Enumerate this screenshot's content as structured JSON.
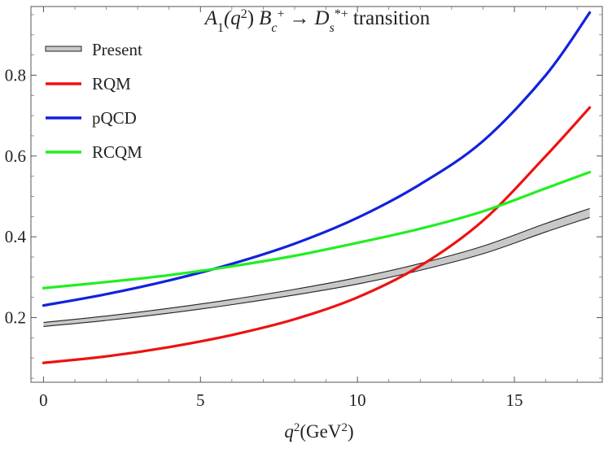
{
  "chart_data": {
    "type": "line",
    "title": {
      "main": "A",
      "sub1": "1",
      "paren_open": "(q",
      "sup": "2",
      "paren_close": ")",
      "b": "B",
      "b_sub": "c",
      "b_sup": "+",
      "arrow": "→",
      "d": "D",
      "d_sub": "s",
      "d_sup": "*+",
      "tail": "transition"
    },
    "xlabel": {
      "var": "q",
      "sup": "2",
      "unit_open": "(GeV",
      "unit_sup": "2",
      "unit_close": ")"
    },
    "ylabel": "",
    "xlim": [
      -0.4,
      17.8
    ],
    "ylim": [
      0.04,
      0.97
    ],
    "xticks": [
      0,
      5,
      10,
      15
    ],
    "xtick_labels": [
      "0",
      "5",
      "10",
      "15"
    ],
    "yticks": [
      0.2,
      0.4,
      0.6,
      0.8
    ],
    "ytick_labels": [
      "0.2",
      "0.4",
      "0.6",
      "0.8"
    ],
    "grid": false,
    "legend_position": "top-left",
    "series": [
      {
        "name": "Present",
        "kind": "band",
        "color": "#222222",
        "fill": "#c8c8c8",
        "x": [
          0,
          2,
          4,
          6,
          8,
          10,
          12,
          14,
          16,
          17.4
        ],
        "lower": [
          0.178,
          0.193,
          0.211,
          0.232,
          0.256,
          0.283,
          0.317,
          0.358,
          0.412,
          0.448
        ],
        "upper": [
          0.188,
          0.204,
          0.223,
          0.245,
          0.27,
          0.299,
          0.334,
          0.377,
          0.433,
          0.47
        ]
      },
      {
        "name": "RQM",
        "kind": "line",
        "color": "#ee1111",
        "x": [
          0,
          2,
          4,
          6,
          8,
          10,
          12,
          14,
          16,
          17.4
        ],
        "y": [
          0.088,
          0.104,
          0.127,
          0.157,
          0.196,
          0.25,
          0.328,
          0.44,
          0.6,
          0.72
        ]
      },
      {
        "name": "pQCD",
        "kind": "line",
        "color": "#1122dd",
        "x": [
          0,
          2,
          4,
          6,
          8,
          10,
          12,
          14,
          16,
          17.4
        ],
        "y": [
          0.23,
          0.258,
          0.292,
          0.333,
          0.383,
          0.447,
          0.53,
          0.637,
          0.8,
          0.955
        ]
      },
      {
        "name": "RCQM",
        "kind": "line",
        "color": "#22ee22",
        "x": [
          0,
          2,
          4,
          6,
          8,
          10,
          12,
          14,
          16,
          17.4
        ],
        "y": [
          0.273,
          0.288,
          0.305,
          0.327,
          0.353,
          0.385,
          0.42,
          0.463,
          0.52,
          0.56
        ]
      }
    ]
  }
}
